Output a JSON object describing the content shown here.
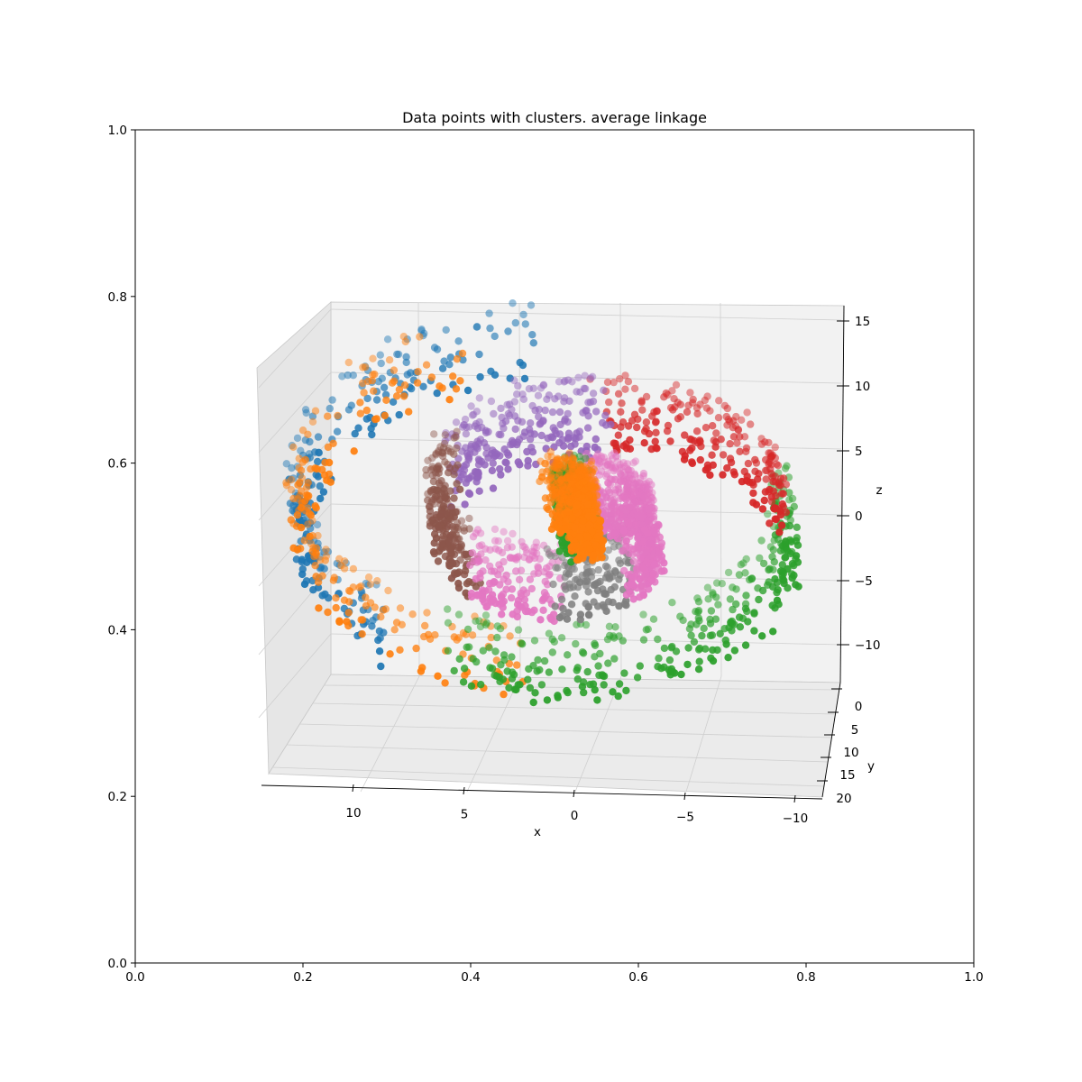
{
  "chart_data": [
    {
      "type": "axes-frame",
      "role": "outer 2D axes",
      "xlim": [
        0.0,
        1.0
      ],
      "ylim": [
        0.0,
        1.0
      ],
      "x_ticks": [
        "0.0",
        "0.2",
        "0.4",
        "0.6",
        "0.8",
        "1.0"
      ],
      "y_ticks": [
        "0.0",
        "0.2",
        "0.4",
        "0.6",
        "0.8",
        "1.0"
      ]
    },
    {
      "type": "scatter",
      "projection": "3d",
      "title": "Data points with clusters. average linkage",
      "xlabel": "x",
      "ylabel": "y",
      "zlabel": "z",
      "x_ticks": [
        "10",
        "5",
        "0",
        "−5",
        "−10"
      ],
      "y_ticks": [
        "0",
        "5",
        "10",
        "15",
        "20"
      ],
      "z_ticks": [
        "15",
        "10",
        "5",
        "0",
        "−5",
        "−10"
      ],
      "xlim": [
        -11,
        14
      ],
      "ylim": [
        -1,
        21
      ],
      "zlim": [
        -13,
        16
      ],
      "grid": true,
      "series": [
        {
          "color": "#1f77b4",
          "t_range": [
            14.0,
            11.8
          ],
          "points": 230
        },
        {
          "color": "#ff7f0e",
          "t_range": [
            13.8,
            11.2
          ],
          "points": 210
        },
        {
          "color": "#2ca02c",
          "t_range": [
            11.5,
            9.3
          ],
          "points": 330
        },
        {
          "color": "#d62728",
          "t_range": [
            9.3,
            8.0
          ],
          "points": 220
        },
        {
          "color": "#9467bd",
          "t_range": [
            8.0,
            6.9
          ],
          "points": 240
        },
        {
          "color": "#8c564b",
          "t_range": [
            6.9,
            5.7
          ],
          "points": 230
        },
        {
          "color": "#e377c2",
          "t_range": [
            5.7,
            4.9
          ],
          "points": 160
        },
        {
          "color": "#7f7f7f",
          "t_range": [
            4.9,
            4.1
          ],
          "points": 170
        },
        {
          "color": "#e377c2",
          "t_range": [
            4.1,
            1.8
          ],
          "points": 650
        },
        {
          "color": "#2ca02c",
          "t_range": [
            1.8,
            0.2
          ],
          "points": 480
        },
        {
          "color": "#ff7f0e",
          "t_range": [
            0.2,
            -2.2
          ],
          "points": 650
        }
      ]
    }
  ]
}
